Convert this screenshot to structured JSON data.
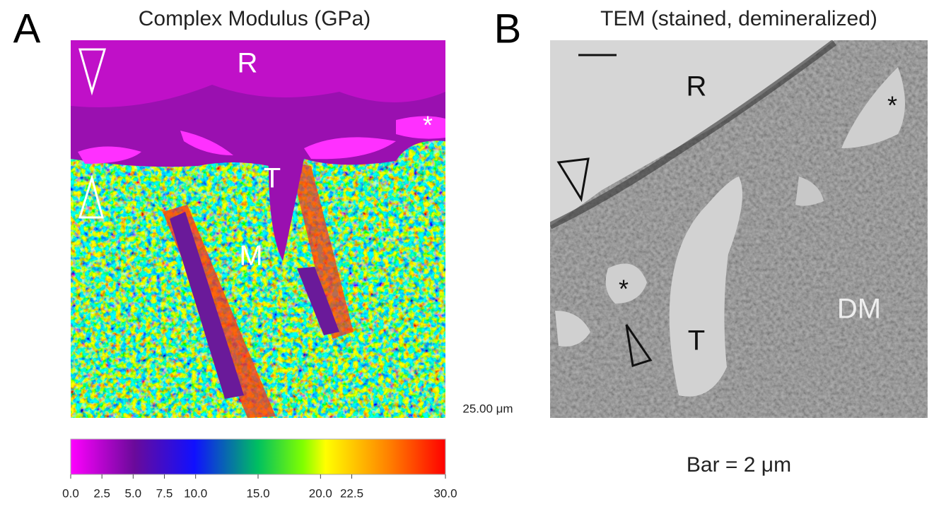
{
  "panel_a": {
    "letter": "A",
    "title": "Complex Modulus (GPa)",
    "labels": [
      "R",
      "*",
      "T",
      "M"
    ],
    "scale": "25.00 μm",
    "colorbar": {
      "lim": [
        0,
        30
      ],
      "ticks": [
        {
          "value": 0,
          "label": "0.0"
        },
        {
          "value": 2.5,
          "label": "2.5"
        },
        {
          "value": 5,
          "label": "5.0"
        },
        {
          "value": 7.5,
          "label": "7.5"
        },
        {
          "value": 10,
          "label": "10.0"
        },
        {
          "value": 15,
          "label": "15.0"
        },
        {
          "value": 20,
          "label": "20.0"
        },
        {
          "value": 22.5,
          "label": "22.5"
        },
        {
          "value": 30,
          "label": "30.0"
        }
      ]
    }
  },
  "panel_b": {
    "letter": "B",
    "title": "TEM (stained, demineralized)",
    "labels": [
      "R",
      "*",
      "*",
      "T",
      "DM"
    ],
    "caption": "Bar = 2 μm"
  }
}
